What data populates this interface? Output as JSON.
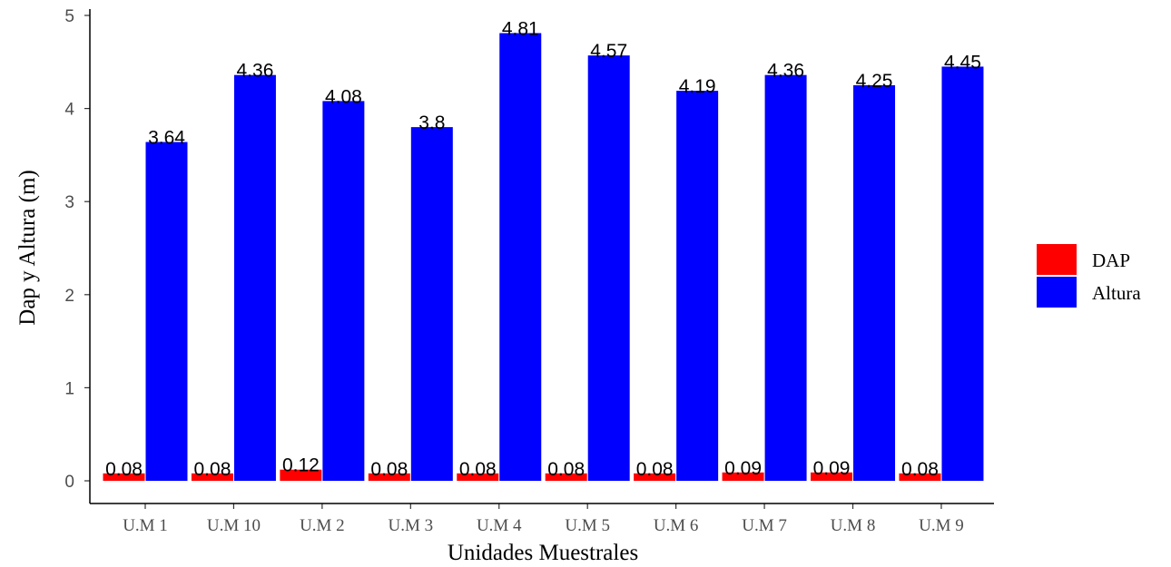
{
  "chart_data": {
    "type": "bar",
    "title": "",
    "xlabel": "Unidades Muestrales",
    "ylabel": "Dap y Altura (m)",
    "ylim": [
      0,
      5
    ],
    "yticks": [
      "0",
      "1",
      "2",
      "3",
      "4",
      "5"
    ],
    "categories": [
      "U.M 1",
      "U.M 10",
      "U.M 2",
      "U.M 3",
      "U.M 4",
      "U.M 5",
      "U.M 6",
      "U.M 7",
      "U.M 8",
      "U.M 9"
    ],
    "series": [
      {
        "name": "DAP",
        "color": "#ff0000",
        "values": [
          0.08,
          0.08,
          0.12,
          0.08,
          0.08,
          0.08,
          0.08,
          0.09,
          0.09,
          0.08
        ],
        "labels": [
          "0.08",
          "0.08",
          "0.12",
          "0.08",
          "0.08",
          "0.08",
          "0.08",
          "0.09",
          "0.09",
          "0.08"
        ]
      },
      {
        "name": "Altura",
        "color": "#0000ff",
        "values": [
          3.64,
          4.36,
          4.08,
          3.8,
          4.81,
          4.57,
          4.19,
          4.36,
          4.25,
          4.45
        ],
        "labels": [
          "3.64",
          "4.36",
          "4.08",
          "3.8",
          "4.81",
          "4.57",
          "4.19",
          "4.36",
          "4.25",
          "4.45"
        ]
      }
    ],
    "grid": false,
    "legend_position": "right"
  }
}
